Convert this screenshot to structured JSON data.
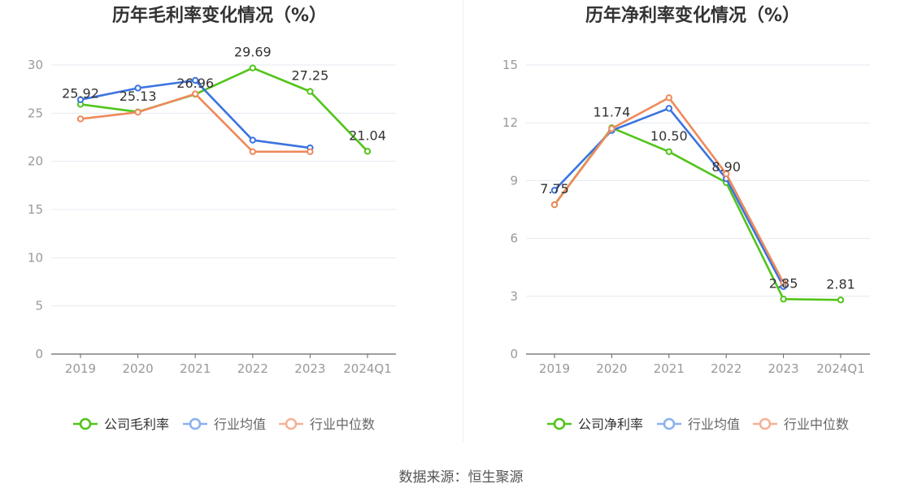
{
  "colors": {
    "company": "#52c41a",
    "industry_avg": "#3a74e0",
    "industry_median": "#ee8a5c",
    "legend_avg": "#8cb0f0",
    "legend_median": "#f5b195",
    "grid": "#e6e8f0",
    "axis": "#666666",
    "tick": "#999999",
    "title": "#333333",
    "label": "#333333"
  },
  "source": "数据来源：恒生聚源",
  "chart_data": [
    {
      "type": "line",
      "title": "历年毛利率变化情况（%）",
      "categories": [
        "2019",
        "2020",
        "2021",
        "2022",
        "2023",
        "2024Q1"
      ],
      "ylim": [
        0,
        30
      ],
      "yticks": [
        0,
        5,
        10,
        15,
        20,
        25,
        30
      ],
      "grid": true,
      "legend": "bottom",
      "series": [
        {
          "name": "公司毛利率",
          "key": "company",
          "values": [
            25.92,
            25.13,
            26.96,
            29.69,
            27.25,
            21.04
          ],
          "labels": [
            "25.92",
            "25.13",
            "26.96",
            "29.69",
            "27.25",
            "21.04"
          ]
        },
        {
          "name": "行业均值",
          "key": "industry_avg",
          "values": [
            26.4,
            27.6,
            28.4,
            22.2,
            21.4,
            null
          ]
        },
        {
          "name": "行业中位数",
          "key": "industry_median",
          "values": [
            24.4,
            25.1,
            27.0,
            21.0,
            21.0,
            null
          ]
        }
      ]
    },
    {
      "type": "line",
      "title": "历年净利率变化情况（%）",
      "categories": [
        "2019",
        "2020",
        "2021",
        "2022",
        "2023",
        "2024Q1"
      ],
      "ylim": [
        0,
        15
      ],
      "yticks": [
        0,
        3,
        6,
        9,
        12,
        15
      ],
      "grid": true,
      "legend": "bottom",
      "series": [
        {
          "name": "公司净利率",
          "key": "company",
          "values": [
            7.75,
            11.74,
            10.5,
            8.9,
            2.85,
            2.81
          ],
          "labels": [
            "7.75",
            "11.74",
            "10.50",
            "8.90",
            "2.85",
            "2.81"
          ]
        },
        {
          "name": "行业均值",
          "key": "industry_avg",
          "values": [
            8.5,
            11.6,
            12.75,
            9.1,
            3.5,
            null
          ]
        },
        {
          "name": "行业中位数",
          "key": "industry_median",
          "values": [
            7.75,
            11.7,
            13.3,
            9.35,
            3.7,
            null
          ]
        }
      ]
    }
  ]
}
